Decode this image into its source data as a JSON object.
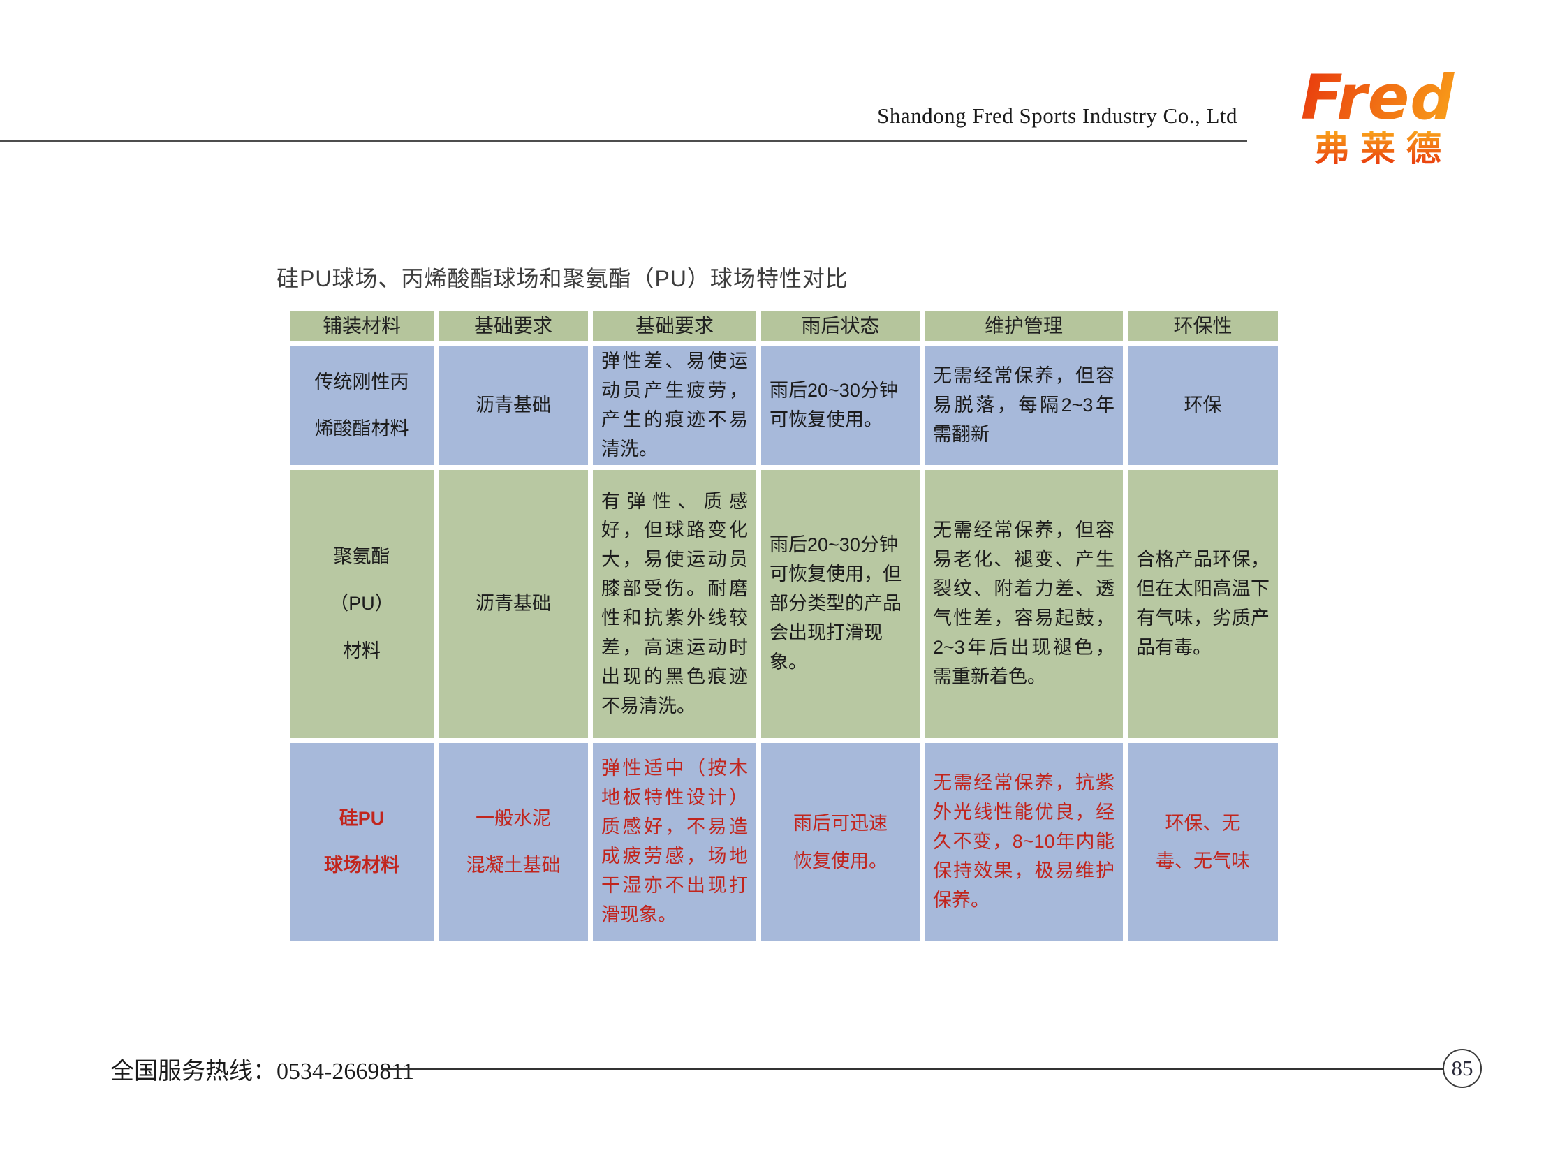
{
  "header": {
    "company": "Shandong Fred Sports Industry Co., Ltd",
    "logo_text": "Fred",
    "logo_subtext": "弗莱德"
  },
  "title": "硅PU球场、丙烯酸酯球场和聚氨酯（PU）球场特性对比",
  "table": {
    "columns": [
      "铺装材料",
      "基础要求",
      "基础要求",
      "雨后状态",
      "维护管理",
      "环保性"
    ],
    "rows": [
      {
        "cells": [
          "传统刚性丙\n烯酸酯材料",
          "沥青基础",
          "弹性差、易使运动员产生疲劳，产生的痕迹不易清洗。",
          "雨后20~30分钟\n可恢复使用。",
          "无需经常保养，但容易脱落，每隔2~3年需翻新",
          "环保"
        ]
      },
      {
        "cells": [
          "聚氨酯\n（PU）\n材料",
          "沥青基础",
          "有弹性、质感好，但球路变化大，易使运动员膝部受伤。耐磨性和抗紫外线较差，高速运动时出现的黑色痕迹不易清洗。",
          "雨后20~30分钟可恢复使用，但部分类型的产品会出现打滑现象。",
          "无需经常保养，但容易老化、褪变、产生裂纹、附着力差、透气性差，容易起鼓，2~3年后出现褪色，需重新着色。",
          "合格产品环保，但在太阳高温下有气味，劣质产品有毒。"
        ]
      },
      {
        "cells": [
          "硅PU\n球场材料",
          "一般水泥\n混凝土基础",
          "弹性适中（按木地板特性设计）质感好，不易造成疲劳感，场地干湿亦不出现打滑现象。",
          "雨后可迅速\n恢复使用。",
          "无需经常保养，抗紫外光线性能优良，经久不变，8~10年内能保持效果，极易维护保养。",
          "环保、无\n毒、无气味"
        ]
      }
    ]
  },
  "footer": {
    "hotline_label": "全国服务热线：",
    "hotline_number": "0534-2669811",
    "page_number": "85"
  },
  "colors": {
    "header_green": "#b5c59c",
    "row_blue": "#a7b9da",
    "row_green": "#b8c8a2",
    "red_text": "#c1251d",
    "logo_grad_start": "#e8380d",
    "logo_grad_end": "#f9a21a"
  }
}
